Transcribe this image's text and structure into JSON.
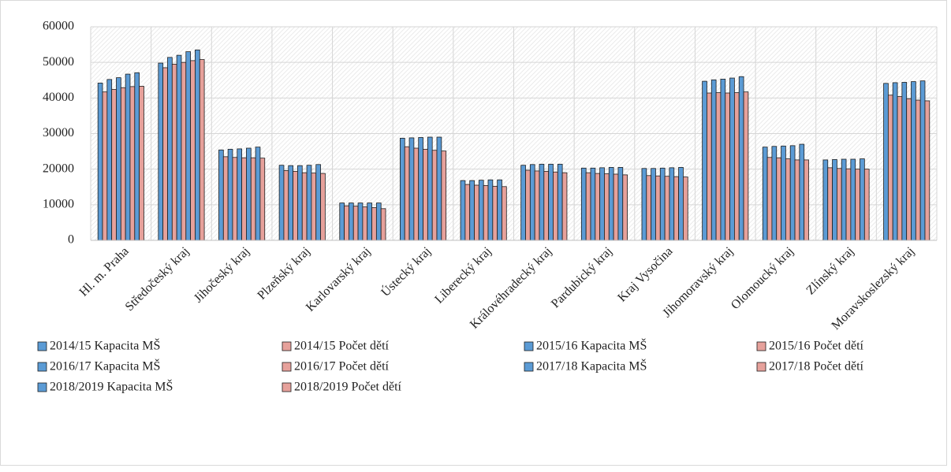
{
  "chart_data": {
    "type": "bar",
    "categories": [
      "Hl. m. Praha",
      "Středočeský kraj",
      "Jihočeský kraj",
      "Plzeňský kraj",
      "Karlovarský kraj",
      "Ústecký kraj",
      "Liberecký kraj",
      "Královéhradecký kraj",
      "Pardubický kraj",
      "Kraj Vysočina",
      "Jihomoravský kraj",
      "Olomoucký kraj",
      "Zlínský kraj",
      "Moravskoslezský kraj"
    ],
    "series": [
      {
        "name": "2014/15 Kapacita MŠ",
        "color": "#5b9bd5",
        "values": [
          44200,
          49800,
          25400,
          21100,
          10500,
          28700,
          16800,
          21100,
          20300,
          20200,
          44700,
          26200,
          22600,
          44100
        ]
      },
      {
        "name": "2014/15 Počet dětí",
        "color": "#e6a19b",
        "values": [
          41700,
          48500,
          23500,
          19600,
          9700,
          26300,
          15700,
          19700,
          19000,
          18200,
          41400,
          23300,
          20400,
          40800
        ]
      },
      {
        "name": "2015/16 Kapacita MŠ",
        "color": "#5b9bd5",
        "values": [
          45200,
          51400,
          25600,
          21000,
          10500,
          28800,
          16800,
          21300,
          20300,
          20200,
          45100,
          26400,
          22700,
          44300
        ]
      },
      {
        "name": "2015/16 Počet dětí",
        "color": "#e6a19b",
        "values": [
          42400,
          49500,
          23300,
          19400,
          9600,
          25900,
          15500,
          19500,
          18800,
          18100,
          41500,
          23200,
          20200,
          40400
        ]
      },
      {
        "name": "2016/17 Kapacita MŠ",
        "color": "#5b9bd5",
        "values": [
          45700,
          52000,
          25700,
          21000,
          10500,
          28900,
          16900,
          21400,
          20400,
          20300,
          45300,
          26500,
          22800,
          44400
        ]
      },
      {
        "name": "2016/17 Počet dětí",
        "color": "#e6a19b",
        "values": [
          42900,
          50000,
          23200,
          19000,
          9400,
          25600,
          15400,
          19400,
          18700,
          18000,
          41400,
          22900,
          20100,
          39800
        ]
      },
      {
        "name": "2017/18 Kapacita MŠ",
        "color": "#5b9bd5",
        "values": [
          46700,
          53000,
          25900,
          21100,
          10500,
          29000,
          17000,
          21400,
          20500,
          20400,
          45600,
          26600,
          22800,
          44600
        ]
      },
      {
        "name": "2017/18 Počet dětí",
        "color": "#e6a19b",
        "values": [
          43200,
          50500,
          23200,
          18900,
          9200,
          25300,
          15200,
          19200,
          18600,
          17900,
          41500,
          22600,
          20000,
          39400
        ]
      },
      {
        "name": "2018/2019 Kapacita MŠ",
        "color": "#5b9bd5",
        "values": [
          47100,
          53500,
          26200,
          21300,
          10500,
          29000,
          17000,
          21400,
          20500,
          20500,
          46000,
          27000,
          22900,
          44800
        ]
      },
      {
        "name": "2018/2019 Počet dětí",
        "color": "#e6a19b",
        "values": [
          43300,
          50800,
          23100,
          18800,
          8900,
          25100,
          15100,
          19000,
          18400,
          17800,
          41700,
          22600,
          20000,
          39200
        ]
      }
    ],
    "ylim": [
      0,
      60000
    ],
    "yticks": [
      0,
      10000,
      20000,
      30000,
      40000,
      50000,
      60000
    ],
    "grid": true,
    "legend": "bottom"
  }
}
